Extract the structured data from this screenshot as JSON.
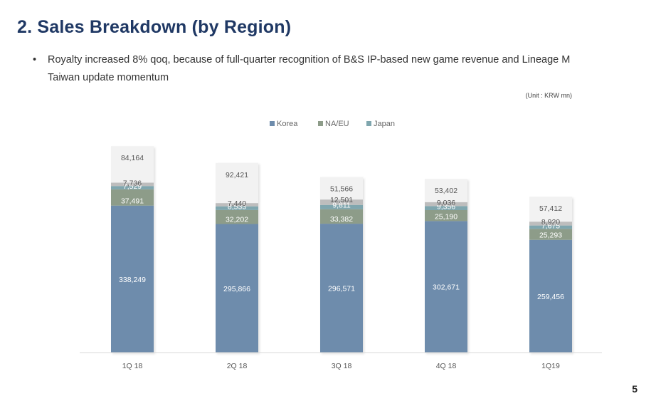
{
  "page": {
    "title": "2. Sales Breakdown (by Region)",
    "bullet_marker": "•",
    "bullet": "Royalty increased 8% qoq, because of full-quarter recognition of B&S IP-based new game revenue and Lineage M Taiwan update momentum",
    "unit": "(Unit : KRW mn)",
    "page_number": "5"
  },
  "chart_data": {
    "type": "bar",
    "stacked": true,
    "categories": [
      "1Q 18",
      "2Q 18",
      "3Q 18",
      "4Q 18",
      "1Q19"
    ],
    "series": [
      {
        "name": "Korea",
        "color": "#6e8cac",
        "label_color": "#ffffff",
        "values": [
          338249,
          295866,
          296571,
          302671,
          259456
        ]
      },
      {
        "name": "NA/EU",
        "color": "#8d9c89",
        "label_color": "#ffffff",
        "values": [
          37491,
          32202,
          33382,
          25190,
          25293
        ]
      },
      {
        "name": "Japan",
        "color": "#7fa6ae",
        "label_color": "#ffffff",
        "values": [
          7529,
          8533,
          9811,
          9356,
          7675
        ]
      },
      {
        "name": "",
        "color": "#bdbdbd",
        "label_color": "#555555",
        "values": [
          7736,
          7440,
          12501,
          9036,
          8920
        ]
      },
      {
        "name": "",
        "color": "#f2f2f2",
        "label_color": "#555555",
        "values": [
          84164,
          92421,
          51566,
          53402,
          57412
        ]
      }
    ],
    "legend": [
      "Korea",
      "NA/EU",
      "Japan"
    ],
    "ylim": [
      0,
      500000
    ],
    "grid": false,
    "legend_position": "top-center"
  }
}
